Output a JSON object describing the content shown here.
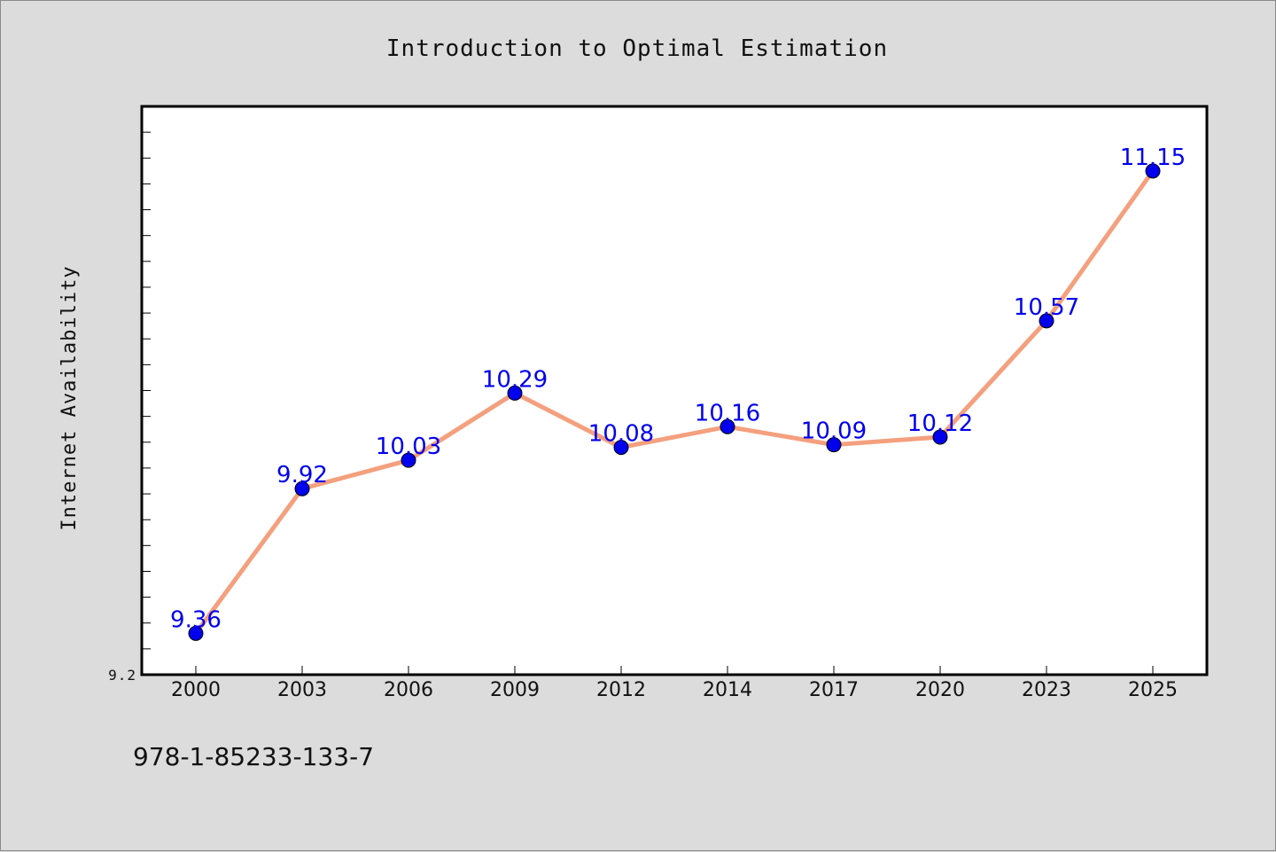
{
  "chart_data": {
    "type": "line",
    "title": "Introduction to Optimal Estimation",
    "xlabel": "",
    "ylabel": "Internet Availability",
    "categories": [
      "2000",
      "2003",
      "2006",
      "2009",
      "2012",
      "2014",
      "2017",
      "2020",
      "2023",
      "2025"
    ],
    "series": [
      {
        "values": [
          9.36,
          9.92,
          10.03,
          10.29,
          10.08,
          10.16,
          10.09,
          10.12,
          10.57,
          11.15
        ]
      }
    ],
    "ylim": [
      9.2,
      11.4
    ],
    "y_tick_labels": [
      "9.2"
    ],
    "grid": false,
    "legend": "none",
    "data_labels": true,
    "line_color": "#f4a07e",
    "marker_color": "#0000ee",
    "label_color": "#0000ee"
  },
  "footer": {
    "isbn": "978-1-85233-133-7"
  }
}
